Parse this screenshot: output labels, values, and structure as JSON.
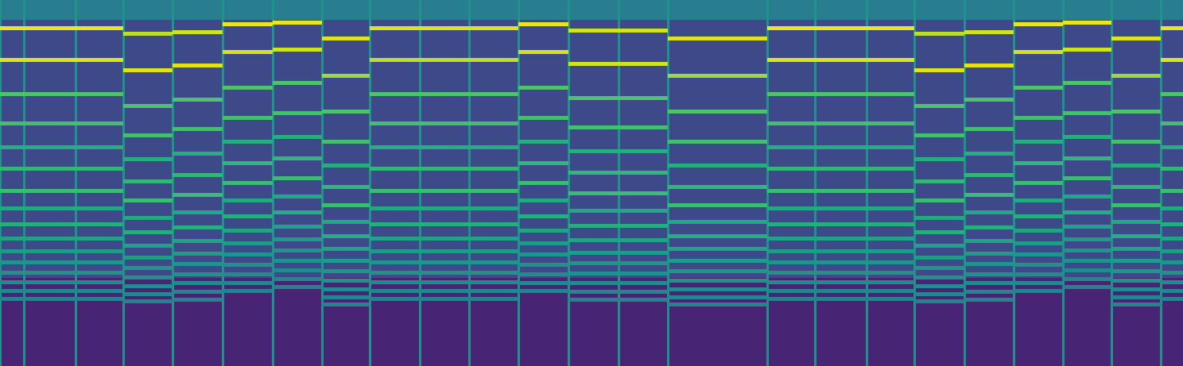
{
  "chart_data": {
    "type": "spectrogram",
    "tick_labels": false,
    "color": "viridis",
    "zlim": [
      0,
      1
    ],
    "xlim": [
      0,
      1488
    ],
    "ylim": [
      461,
      0
    ],
    "background": [
      {
        "y0": 0,
        "y1": 25,
        "level": 0.42
      },
      {
        "y0": 25,
        "y1": 350,
        "level": 0.22
      },
      {
        "y0": 350,
        "y1": 461,
        "level": 0.1
      }
    ],
    "notes": [
      {
        "start": 0,
        "end": 30,
        "onset": 0.5,
        "band_y": [
          35,
          75,
          118,
          155,
          185,
          212,
          240,
          262,
          282,
          300,
          316,
          330,
          343,
          355,
          366,
          376
        ],
        "band_level": [
          0.97,
          0.95,
          0.72,
          0.7,
          0.62,
          0.66,
          0.68,
          0.6,
          0.62,
          0.58,
          0.55,
          0.52,
          0.5,
          0.48,
          0.46,
          0.44
        ]
      },
      {
        "start": 30,
        "end": 95,
        "onset": 0.5,
        "band_y": [
          35,
          75,
          118,
          155,
          185,
          212,
          240,
          262,
          282,
          300,
          316,
          330,
          343,
          355,
          366,
          376
        ],
        "band_level": [
          0.97,
          0.95,
          0.72,
          0.7,
          0.62,
          0.66,
          0.68,
          0.6,
          0.62,
          0.58,
          0.55,
          0.52,
          0.5,
          0.48,
          0.46,
          0.44
        ]
      },
      {
        "start": 95,
        "end": 155,
        "onset": 0.5,
        "band_y": [
          35,
          75,
          118,
          155,
          185,
          212,
          240,
          262,
          282,
          300,
          316,
          330,
          343,
          355,
          366,
          376
        ],
        "band_level": [
          0.97,
          0.95,
          0.72,
          0.7,
          0.62,
          0.66,
          0.68,
          0.6,
          0.62,
          0.58,
          0.55,
          0.52,
          0.5,
          0.48,
          0.46,
          0.44
        ]
      },
      {
        "start": 155,
        "end": 217,
        "onset": 0.5,
        "band_y": [
          42,
          88,
          133,
          170,
          200,
          228,
          252,
          274,
          292,
          309,
          324,
          337,
          349,
          360,
          370,
          379
        ],
        "band_level": [
          0.9,
          0.95,
          0.72,
          0.7,
          0.62,
          0.66,
          0.68,
          0.6,
          0.62,
          0.58,
          0.55,
          0.52,
          0.5,
          0.48,
          0.46,
          0.44
        ]
      },
      {
        "start": 217,
        "end": 280,
        "onset": 0.5,
        "band_y": [
          40,
          82,
          125,
          162,
          193,
          220,
          245,
          267,
          286,
          303,
          319,
          332,
          345,
          356,
          367,
          377
        ],
        "band_level": [
          0.93,
          0.95,
          0.72,
          0.7,
          0.62,
          0.66,
          0.68,
          0.6,
          0.62,
          0.58,
          0.55,
          0.52,
          0.5,
          0.48,
          0.46,
          0.44
        ]
      },
      {
        "start": 280,
        "end": 343,
        "onset": 0.5,
        "band_y": [
          30,
          65,
          110,
          148,
          178,
          205,
          230,
          252,
          272,
          290,
          306,
          320,
          333,
          345,
          356,
          366
        ],
        "band_level": [
          0.97,
          0.93,
          0.72,
          0.7,
          0.62,
          0.66,
          0.68,
          0.6,
          0.62,
          0.58,
          0.55,
          0.52,
          0.5,
          0.48,
          0.46,
          0.44
        ]
      },
      {
        "start": 343,
        "end": 405,
        "onset": 0.5,
        "band_y": [
          28,
          62,
          104,
          142,
          172,
          199,
          224,
          247,
          267,
          285,
          301,
          315,
          328,
          340,
          351,
          361
        ],
        "band_level": [
          0.97,
          0.93,
          0.72,
          0.7,
          0.62,
          0.66,
          0.68,
          0.6,
          0.62,
          0.58,
          0.55,
          0.52,
          0.5,
          0.48,
          0.46,
          0.44
        ]
      },
      {
        "start": 405,
        "end": 465,
        "onset": 0.5,
        "band_y": [
          48,
          95,
          140,
          178,
          208,
          235,
          258,
          279,
          297,
          313,
          328,
          341,
          353,
          364,
          374,
          383
        ],
        "band_level": [
          0.95,
          0.85,
          0.72,
          0.7,
          0.62,
          0.66,
          0.68,
          0.6,
          0.62,
          0.58,
          0.55,
          0.52,
          0.5,
          0.48,
          0.46,
          0.44
        ]
      },
      {
        "start": 465,
        "end": 528,
        "onset": 0.5,
        "band_y": [
          35,
          75,
          118,
          155,
          185,
          212,
          240,
          262,
          282,
          300,
          316,
          330,
          343,
          355,
          366,
          376
        ],
        "band_level": [
          0.95,
          0.9,
          0.72,
          0.7,
          0.62,
          0.66,
          0.68,
          0.6,
          0.62,
          0.58,
          0.55,
          0.52,
          0.5,
          0.48,
          0.46,
          0.44
        ]
      },
      {
        "start": 528,
        "end": 590,
        "onset": 0.5,
        "band_y": [
          35,
          75,
          118,
          155,
          185,
          212,
          240,
          262,
          282,
          300,
          316,
          330,
          343,
          355,
          366,
          376
        ],
        "band_level": [
          0.95,
          0.9,
          0.72,
          0.7,
          0.62,
          0.66,
          0.68,
          0.6,
          0.62,
          0.58,
          0.55,
          0.52,
          0.5,
          0.48,
          0.46,
          0.44
        ]
      },
      {
        "start": 590,
        "end": 652,
        "onset": 0.5,
        "band_y": [
          35,
          75,
          118,
          155,
          185,
          212,
          240,
          262,
          282,
          300,
          316,
          330,
          343,
          355,
          366,
          376
        ],
        "band_level": [
          0.95,
          0.9,
          0.72,
          0.7,
          0.62,
          0.66,
          0.68,
          0.6,
          0.62,
          0.58,
          0.55,
          0.52,
          0.5,
          0.48,
          0.46,
          0.44
        ]
      },
      {
        "start": 652,
        "end": 715,
        "onset": 0.5,
        "band_y": [
          30,
          65,
          110,
          148,
          178,
          205,
          230,
          252,
          272,
          290,
          306,
          320,
          333,
          345,
          356,
          366
        ],
        "band_level": [
          0.97,
          0.93,
          0.72,
          0.7,
          0.62,
          0.66,
          0.68,
          0.6,
          0.62,
          0.58,
          0.55,
          0.52,
          0.5,
          0.48,
          0.46,
          0.44
        ]
      },
      {
        "start": 715,
        "end": 778,
        "onset": 0.5,
        "band_y": [
          38,
          80,
          123,
          160,
          190,
          217,
          243,
          265,
          284,
          302,
          318,
          331,
          344,
          356,
          367,
          377
        ],
        "band_level": [
          0.93,
          0.93,
          0.72,
          0.7,
          0.62,
          0.66,
          0.68,
          0.6,
          0.62,
          0.58,
          0.55,
          0.52,
          0.5,
          0.48,
          0.46,
          0.44
        ]
      },
      {
        "start": 778,
        "end": 840,
        "onset": 0.5,
        "band_y": [
          38,
          80,
          123,
          160,
          190,
          217,
          243,
          265,
          284,
          302,
          318,
          331,
          344,
          356,
          367,
          377
        ],
        "band_level": [
          0.93,
          0.93,
          0.72,
          0.7,
          0.62,
          0.66,
          0.68,
          0.6,
          0.62,
          0.58,
          0.55,
          0.52,
          0.5,
          0.48,
          0.46,
          0.44
        ]
      },
      {
        "start": 840,
        "end": 965,
        "onset": 0.5,
        "band_y": [
          48,
          95,
          140,
          178,
          208,
          235,
          258,
          279,
          297,
          313,
          328,
          341,
          353,
          364,
          374,
          383
        ],
        "band_level": [
          0.95,
          0.85,
          0.72,
          0.7,
          0.62,
          0.66,
          0.68,
          0.6,
          0.62,
          0.58,
          0.55,
          0.52,
          0.5,
          0.48,
          0.46,
          0.44
        ]
      },
      {
        "start": 965,
        "end": 1025,
        "onset": 0.5,
        "band_y": [
          35,
          75,
          118,
          155,
          185,
          212,
          240,
          262,
          282,
          300,
          316,
          330,
          343,
          355,
          366,
          376
        ],
        "band_level": [
          0.97,
          0.95,
          0.72,
          0.7,
          0.62,
          0.66,
          0.68,
          0.6,
          0.62,
          0.58,
          0.55,
          0.52,
          0.5,
          0.48,
          0.46,
          0.44
        ]
      },
      {
        "start": 1025,
        "end": 1090,
        "onset": 0.5,
        "band_y": [
          35,
          75,
          118,
          155,
          185,
          212,
          240,
          262,
          282,
          300,
          316,
          330,
          343,
          355,
          366,
          376
        ],
        "band_level": [
          0.97,
          0.95,
          0.72,
          0.7,
          0.62,
          0.66,
          0.68,
          0.6,
          0.62,
          0.58,
          0.55,
          0.52,
          0.5,
          0.48,
          0.46,
          0.44
        ]
      },
      {
        "start": 1090,
        "end": 1150,
        "onset": 0.5,
        "band_y": [
          35,
          75,
          118,
          155,
          185,
          212,
          240,
          262,
          282,
          300,
          316,
          330,
          343,
          355,
          366,
          376
        ],
        "band_level": [
          0.97,
          0.95,
          0.72,
          0.7,
          0.62,
          0.66,
          0.68,
          0.6,
          0.62,
          0.58,
          0.55,
          0.52,
          0.5,
          0.48,
          0.46,
          0.44
        ]
      },
      {
        "start": 1150,
        "end": 1213,
        "onset": 0.5,
        "band_y": [
          42,
          88,
          133,
          170,
          200,
          228,
          252,
          274,
          292,
          309,
          324,
          337,
          349,
          360,
          370,
          379
        ],
        "band_level": [
          0.9,
          0.95,
          0.72,
          0.7,
          0.62,
          0.66,
          0.68,
          0.6,
          0.62,
          0.58,
          0.55,
          0.52,
          0.5,
          0.48,
          0.46,
          0.44
        ]
      },
      {
        "start": 1213,
        "end": 1275,
        "onset": 0.5,
        "band_y": [
          40,
          82,
          125,
          162,
          193,
          220,
          245,
          267,
          286,
          303,
          319,
          332,
          345,
          356,
          367,
          377
        ],
        "band_level": [
          0.93,
          0.95,
          0.72,
          0.7,
          0.62,
          0.66,
          0.68,
          0.6,
          0.62,
          0.58,
          0.55,
          0.52,
          0.5,
          0.48,
          0.46,
          0.44
        ]
      },
      {
        "start": 1275,
        "end": 1337,
        "onset": 0.5,
        "band_y": [
          30,
          65,
          110,
          148,
          178,
          205,
          230,
          252,
          272,
          290,
          306,
          320,
          333,
          345,
          356,
          366
        ],
        "band_level": [
          0.97,
          0.93,
          0.72,
          0.7,
          0.62,
          0.66,
          0.68,
          0.6,
          0.62,
          0.58,
          0.55,
          0.52,
          0.5,
          0.48,
          0.46,
          0.44
        ]
      },
      {
        "start": 1337,
        "end": 1398,
        "onset": 0.5,
        "band_y": [
          28,
          62,
          104,
          142,
          172,
          199,
          224,
          247,
          267,
          285,
          301,
          315,
          328,
          340,
          351,
          361
        ],
        "band_level": [
          0.97,
          0.93,
          0.72,
          0.7,
          0.62,
          0.66,
          0.68,
          0.6,
          0.62,
          0.58,
          0.55,
          0.52,
          0.5,
          0.48,
          0.46,
          0.44
        ]
      },
      {
        "start": 1398,
        "end": 1460,
        "onset": 0.5,
        "band_y": [
          48,
          95,
          140,
          178,
          208,
          235,
          258,
          279,
          297,
          313,
          328,
          341,
          353,
          364,
          374,
          383
        ],
        "band_level": [
          0.95,
          0.85,
          0.72,
          0.7,
          0.62,
          0.66,
          0.68,
          0.6,
          0.62,
          0.58,
          0.55,
          0.52,
          0.5,
          0.48,
          0.46,
          0.44
        ]
      },
      {
        "start": 1460,
        "end": 1488,
        "onset": 0.5,
        "band_y": [
          35,
          75,
          118,
          155,
          185,
          212,
          240,
          262,
          282,
          300,
          316,
          330,
          343,
          355,
          366,
          376
        ],
        "band_level": [
          0.97,
          0.95,
          0.72,
          0.7,
          0.62,
          0.66,
          0.68,
          0.6,
          0.62,
          0.58,
          0.55,
          0.52,
          0.5,
          0.48,
          0.46,
          0.44
        ]
      }
    ]
  }
}
